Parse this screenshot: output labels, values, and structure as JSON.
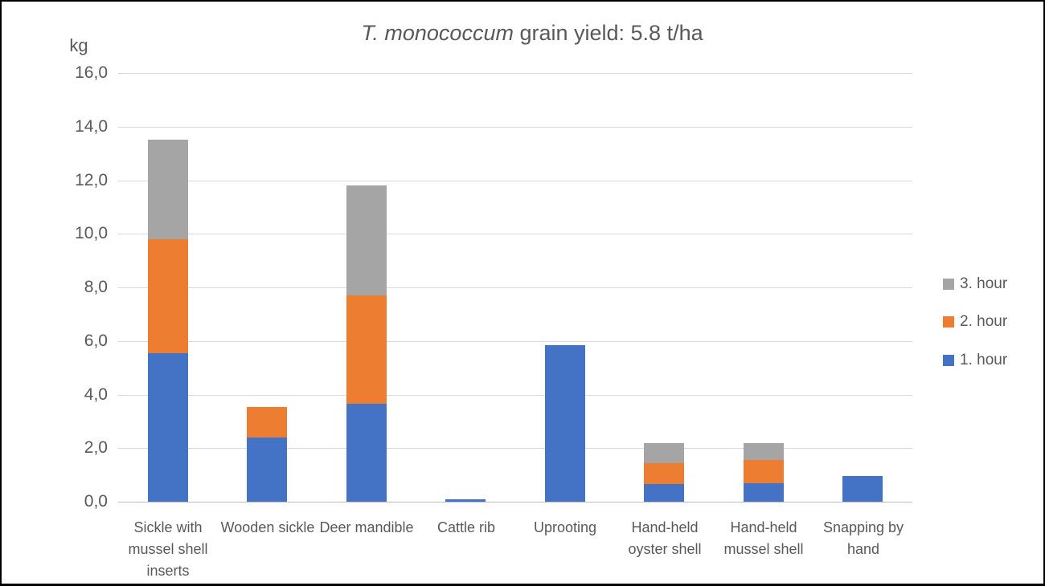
{
  "chart_data": {
    "type": "bar",
    "stacked": true,
    "title_italic": "T. monococcum",
    "title_rest": " grain yield: 5.8 t/ha",
    "unit_label": "kg",
    "categories": [
      "Sickle with mussel shell inserts",
      "Wooden sickle",
      "Deer mandible",
      "Cattle rib",
      "Uprooting",
      "Hand-held oyster shell",
      "Hand-held mussel shell",
      "Snapping by hand"
    ],
    "series": [
      {
        "name": "1. hour",
        "color": "#4472C4",
        "values": [
          5.55,
          2.4,
          3.65,
          0.1,
          5.85,
          0.65,
          0.7,
          0.95
        ]
      },
      {
        "name": "2. hour",
        "color": "#ED7D31",
        "values": [
          4.25,
          1.15,
          4.05,
          0.0,
          0.0,
          0.8,
          0.85,
          0.0
        ]
      },
      {
        "name": "3. hour",
        "color": "#A5A5A5",
        "values": [
          3.7,
          0.0,
          4.1,
          0.0,
          0.0,
          0.75,
          0.65,
          0.0
        ]
      }
    ],
    "ylabel": "kg",
    "xlabel": "",
    "ylim": [
      0,
      16
    ],
    "ytick_step": 2,
    "ytick_labels": [
      "0,0",
      "2,0",
      "4,0",
      "6,0",
      "8,0",
      "10,0",
      "12,0",
      "14,0",
      "16,0"
    ],
    "grid": true,
    "legend_position": "right",
    "legend_order_top_to_bottom": [
      "3. hour",
      "2. hour",
      "1. hour"
    ],
    "colors": {
      "text": "#595959",
      "gridline": "#D9D9D9",
      "axis_line": "#BFBFBF"
    }
  }
}
